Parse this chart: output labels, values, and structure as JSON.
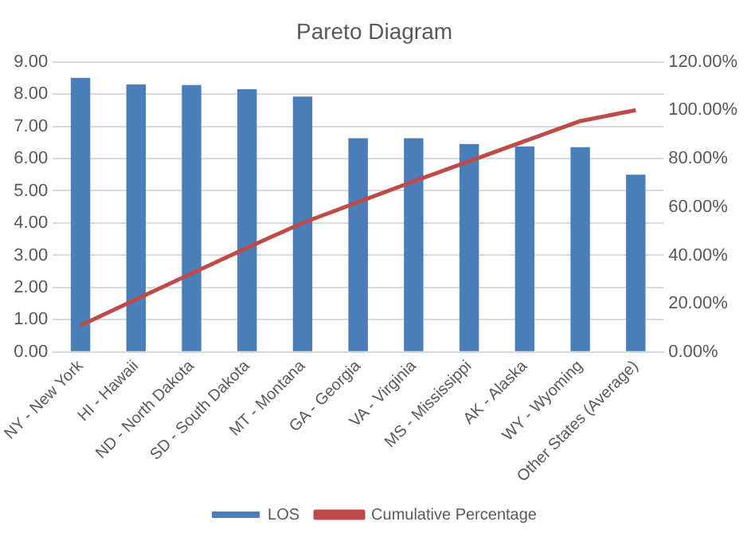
{
  "chart_data": {
    "type": "bar",
    "title": "Pareto Diagram",
    "categories": [
      "NY - New York",
      "HI - Hawaii",
      "ND - North Dakota",
      "SD - South Dakota",
      "MT - Montana",
      "GA - Georgia",
      "VA - Virginia",
      "MS - Mississippi",
      "AK - Alaska",
      "WY - Wyoming",
      "Other States (Average)"
    ],
    "series": [
      {
        "name": "LOS",
        "color": "#4a7ebb",
        "values": [
          8.5,
          8.3,
          8.28,
          8.15,
          7.92,
          6.63,
          6.63,
          6.45,
          6.38,
          6.35,
          5.5
        ]
      },
      {
        "name": "Cumulative Percentage",
        "type": "line",
        "axis": "y2",
        "color": "#be4b48",
        "values": [
          11.0,
          21.8,
          32.5,
          43.1,
          53.4,
          62.0,
          70.6,
          78.9,
          87.2,
          95.5,
          100
        ]
      }
    ],
    "ylim": [
      0,
      9
    ],
    "yticks": [
      {
        "value": 0,
        "label": "0.00"
      },
      {
        "value": 1,
        "label": "1.00"
      },
      {
        "value": 2,
        "label": "2.00"
      },
      {
        "value": 3,
        "label": "3.00"
      },
      {
        "value": 4,
        "label": "4.00"
      },
      {
        "value": 5,
        "label": "5.00"
      },
      {
        "value": 6,
        "label": "6.00"
      },
      {
        "value": 7,
        "label": "7.00"
      },
      {
        "value": 8,
        "label": "8.00"
      },
      {
        "value": 9,
        "label": "9.00"
      }
    ],
    "y2lim": [
      0,
      120
    ],
    "y2ticks": [
      {
        "value": 0,
        "label": "0.00%"
      },
      {
        "value": 20,
        "label": "20.00%"
      },
      {
        "value": 40,
        "label": "40.00%"
      },
      {
        "value": 60,
        "label": "60.00%"
      },
      {
        "value": 80,
        "label": "80.00%"
      },
      {
        "value": 100,
        "label": "100.00%"
      },
      {
        "value": 120,
        "label": "120.00%"
      }
    ],
    "grid": "y",
    "legend": "bottom",
    "marker": "none",
    "line_style": "solid"
  }
}
